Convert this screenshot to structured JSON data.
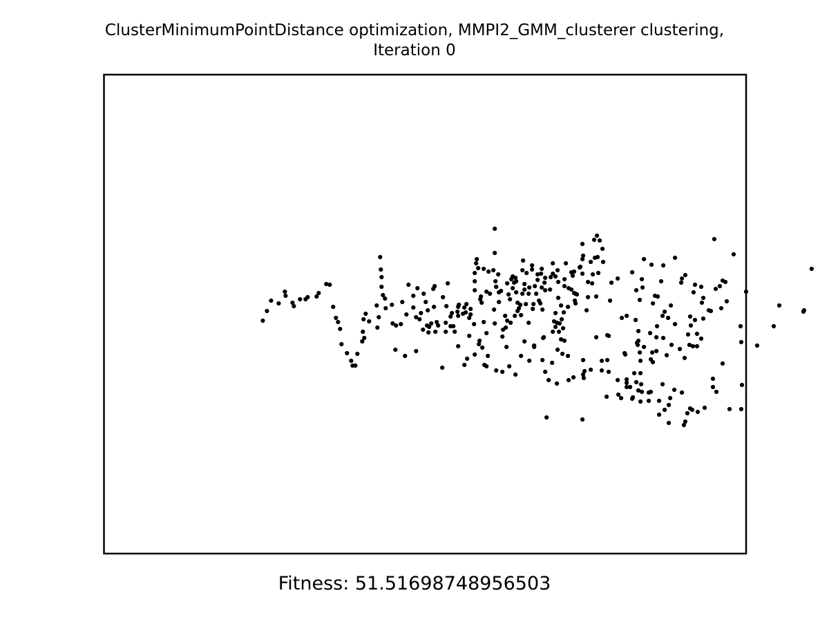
{
  "chart_data": {
    "type": "scatter",
    "title_lines": [
      "ClusterMinimumPointDistance optimization, MMPI2_GMM_clusterer clustering,",
      "Iteration 0"
    ],
    "axes_visible": false,
    "xlim": [
      0,
      930
    ],
    "ylim": [
      0,
      693
    ],
    "marker_color": "#000000",
    "points": [
      [
        226,
        351
      ],
      [
        252,
        336
      ],
      [
        251,
        310
      ],
      [
        272,
        302
      ],
      [
        265,
        322
      ],
      [
        253,
        306
      ],
      [
        287,
        336
      ],
      [
        288,
        333
      ],
      [
        303,
        378
      ],
      [
        310,
        361
      ],
      [
        311,
        287
      ],
      [
        305,
        339
      ],
      [
        305,
        347
      ],
      [
        311,
        299
      ],
      [
        296,
        337
      ],
      [
        299,
        332
      ],
      [
        313,
        273
      ],
      [
        314,
        267
      ],
      [
        320,
        321
      ],
      [
        324,
        281
      ],
      [
        340,
        258
      ],
      [
        340,
        223
      ],
      [
        331,
        285
      ],
      [
        318,
        385
      ],
      [
        338,
        283
      ],
      [
        340,
        360
      ],
      [
        346,
        315
      ],
      [
        342,
        307
      ],
      [
        341,
        299
      ],
      [
        351,
        379
      ],
      [
        316,
        280
      ],
      [
        324,
        358
      ],
      [
        345,
        289
      ],
      [
        328,
        374
      ],
      [
        363,
        359
      ],
      [
        360,
        318
      ],
      [
        370,
        294
      ],
      [
        368,
        301
      ],
      [
        381,
        269
      ],
      [
        386,
        287
      ],
      [
        375,
        338
      ],
      [
        383,
        311
      ],
      [
        383,
        303
      ],
      [
        395,
        339
      ],
      [
        409,
        340
      ],
      [
        412,
        301
      ],
      [
        394,
        276
      ],
      [
        413,
        294
      ],
      [
        407,
        288
      ],
      [
        420,
        311
      ],
      [
        431,
        283
      ],
      [
        428,
        292
      ],
      [
        426,
        357
      ],
      [
        424,
        372
      ],
      [
        432,
        300
      ],
      [
        441,
        306
      ],
      [
        428,
        345
      ],
      [
        438,
        404
      ],
      [
        453,
        291
      ],
      [
        464,
        278
      ],
      [
        463,
        279
      ],
      [
        475,
        300
      ],
      [
        479,
        271
      ],
      [
        496,
        252
      ],
      [
        484,
        239
      ],
      [
        488,
        233
      ],
      [
        492,
        240
      ],
      [
        485,
        265
      ],
      [
        489,
        264
      ],
      [
        482,
        289
      ],
      [
        481,
        302
      ],
      [
        468,
        262
      ],
      [
        467,
        245
      ],
      [
        467,
        288
      ],
      [
        457,
        331
      ],
      [
        457,
        317
      ],
      [
        456,
        327
      ],
      [
        455,
        316
      ],
      [
        451,
        311
      ],
      [
        446,
        336
      ],
      [
        440,
        344
      ],
      [
        437,
        354
      ],
      [
        434,
        360
      ],
      [
        433,
        372
      ],
      [
        436,
        383
      ],
      [
        431,
        398
      ],
      [
        436,
        334
      ],
      [
        413,
        312
      ],
      [
        408,
        308
      ],
      [
        404,
        327
      ],
      [
        406,
        331
      ],
      [
        408,
        281
      ],
      [
        402,
        297
      ],
      [
        400,
        317
      ],
      [
        398,
        306
      ],
      [
        402,
        289
      ],
      [
        394,
        282
      ],
      [
        390,
        308
      ],
      [
        389,
        359
      ],
      [
        397,
        392
      ],
      [
        396,
        332
      ],
      [
        380,
        283
      ],
      [
        380,
        317
      ],
      [
        377,
        333
      ],
      [
        373,
        342
      ],
      [
        371,
        315
      ],
      [
        371,
        299
      ],
      [
        366,
        309
      ],
      [
        369,
        349
      ],
      [
        373,
        330
      ],
      [
        356,
        366
      ],
      [
        355,
        349
      ],
      [
        358,
        356
      ],
      [
        362,
        325
      ],
      [
        366,
        292
      ],
      [
        349,
        313
      ],
      [
        346,
        329
      ],
      [
        342,
        307
      ],
      [
        339,
        340
      ],
      [
        333,
        317
      ],
      [
        328,
        314
      ],
      [
        319,
        325
      ],
      [
        311,
        312
      ],
      [
        303,
        352
      ],
      [
        298,
        344
      ],
      [
        294,
        346
      ],
      [
        288,
        333
      ],
      [
        286,
        343
      ],
      [
        280,
        364
      ],
      [
        270,
        335
      ],
      [
        276,
        350
      ],
      [
        269,
        372
      ],
      [
        254,
        372
      ],
      [
        242,
        363
      ],
      [
        243,
        341
      ],
      [
        233,
        345
      ],
      [
        240,
        329
      ],
      [
        237,
        317
      ],
      [
        228,
        309
      ],
      [
        215,
        304
      ],
      [
        206,
        329
      ],
      [
        191,
        333
      ],
      [
        181,
        324
      ],
      [
        196,
        398
      ],
      [
        210,
        407
      ],
      [
        226,
        400
      ],
      [
        287,
        349
      ],
      [
        264,
        424
      ],
      [
        278,
        345
      ],
      [
        245,
        365
      ],
      [
        258,
        363
      ],
      [
        321,
        330
      ],
      [
        352,
        369
      ],
      [
        357,
        394
      ],
      [
        364,
        296
      ],
      [
        358,
        302
      ],
      [
        378,
        348
      ],
      [
        385,
        332
      ],
      [
        389,
        317
      ],
      [
        397,
        394
      ],
      [
        410,
        381
      ],
      [
        424,
        273
      ],
      [
        421,
        293
      ],
      [
        424,
        288
      ],
      [
        432,
        323
      ],
      [
        443,
        273
      ],
      [
        441,
        296
      ],
      [
        447,
        309
      ],
      [
        451,
        286
      ],
      [
        455,
        285
      ],
      [
        459,
        318
      ],
      [
        467,
        267
      ],
      [
        473,
        341
      ],
      [
        475,
        322
      ],
      [
        487,
        321
      ],
      [
        490,
        287
      ],
      [
        497,
        271
      ],
      [
        505,
        378
      ],
      [
        507,
        327
      ],
      [
        509,
        301
      ],
      [
        518,
        295
      ],
      [
        524,
        352
      ],
      [
        546,
        388
      ],
      [
        539,
        286
      ],
      [
        545,
        312
      ],
      [
        547,
        391
      ],
      [
        550,
        326
      ],
      [
        553,
        296
      ],
      [
        554,
        308
      ],
      [
        556,
        267
      ],
      [
        567,
        275
      ],
      [
        568,
        402
      ],
      [
        569,
        331
      ],
      [
        572,
        320
      ],
      [
        581,
        299
      ],
      [
        584,
        276
      ],
      [
        586,
        343
      ],
      [
        595,
        334
      ],
      [
        601,
        265
      ],
      [
        611,
        295
      ],
      [
        610,
        301
      ],
      [
        616,
        290
      ],
      [
        624,
        363
      ],
      [
        627,
        393
      ],
      [
        622,
        391
      ],
      [
        628,
        315
      ],
      [
        630,
        304
      ],
      [
        633,
        375
      ],
      [
        642,
        323
      ],
      [
        640,
        330
      ],
      [
        650,
        341
      ],
      [
        653,
        342
      ],
      [
        660,
        310
      ],
      [
        666,
        306
      ],
      [
        670,
        298
      ],
      [
        668,
        338
      ],
      [
        674,
        300
      ],
      [
        676,
        328
      ],
      [
        686,
        260
      ],
      [
        697,
        387
      ],
      [
        704,
        314
      ],
      [
        720,
        392
      ],
      [
        787,
        343
      ],
      [
        788,
        341
      ],
      [
        799,
        281
      ],
      [
        658,
        238
      ],
      [
        630,
        355
      ],
      [
        591,
        352
      ],
      [
        566,
        412
      ],
      [
        569,
        416
      ],
      [
        576,
        321
      ],
      [
        601,
        361
      ],
      [
        574,
        400
      ],
      [
        592,
        478
      ],
      [
        578,
        472
      ],
      [
        563,
        460
      ],
      [
        551,
        432
      ],
      [
        539,
        469
      ],
      [
        523,
        468
      ],
      [
        519,
        463
      ],
      [
        502,
        466
      ],
      [
        495,
        414
      ],
      [
        518,
        442
      ],
      [
        531,
        441
      ],
      [
        545,
        445
      ],
      [
        548,
        457
      ],
      [
        552,
        448
      ],
      [
        540,
        467
      ],
      [
        531,
        452
      ],
      [
        563,
        472
      ],
      [
        566,
        459
      ],
      [
        578,
        492
      ],
      [
        592,
        504
      ],
      [
        614,
        507
      ],
      [
        619,
        490
      ],
      [
        616,
        502
      ],
      [
        594,
        468
      ],
      [
        600,
        456
      ],
      [
        611,
        460
      ],
      [
        634,
        488
      ],
      [
        623,
        483
      ],
      [
        626,
        485
      ],
      [
        644,
        482
      ],
      [
        586,
        485
      ],
      [
        620,
        376
      ],
      [
        639,
        382
      ],
      [
        698,
        449
      ],
      [
        697,
        484
      ],
      [
        696,
        364
      ],
      [
        744,
        364
      ],
      [
        752,
        334
      ],
      [
        656,
        452
      ],
      [
        656,
        440
      ],
      [
        661,
        459
      ],
      [
        670,
        418
      ],
      [
        680,
        484
      ],
      [
        633,
        393
      ],
      [
        623,
        350
      ],
      [
        642,
        353
      ],
      [
        639,
        307
      ],
      [
        583,
        448
      ],
      [
        583,
        349
      ],
      [
        556,
        394
      ],
      [
        584,
        381
      ],
      [
        574,
        380
      ],
      [
        589,
        406
      ],
      [
        596,
        391
      ],
      [
        608,
        397
      ],
      [
        615,
        410
      ],
      [
        544,
        355
      ],
      [
        531,
        349
      ],
      [
        529,
        405
      ],
      [
        536,
        452
      ],
      [
        548,
        457
      ],
      [
        553,
        459
      ],
      [
        565,
        374
      ],
      [
        575,
        364
      ],
      [
        548,
        385
      ],
      [
        550,
        402
      ],
      [
        548,
        371
      ],
      [
        551,
        414
      ],
      [
        542,
        432
      ],
      [
        551,
        473
      ],
      [
        531,
        446
      ],
      [
        528,
        403
      ],
      [
        503,
        377
      ],
      [
        487,
        380
      ],
      [
        468,
        413
      ],
      [
        468,
        434
      ],
      [
        479,
        427
      ],
      [
        503,
        413
      ],
      [
        505,
        430
      ],
      [
        495,
        428
      ],
      [
        469,
        439
      ],
      [
        454,
        438
      ],
      [
        415,
        496
      ],
      [
        409,
        413
      ],
      [
        418,
        442
      ],
      [
        423,
        417
      ],
      [
        447,
        442
      ],
      [
        467,
        499
      ],
      [
        470,
        429
      ],
      [
        446,
        407
      ],
      [
        428,
        365
      ],
      [
        441,
        385
      ],
      [
        439,
        367
      ],
      [
        430,
        359
      ],
      [
        413,
        430
      ],
      [
        411,
        380
      ],
      [
        430,
        447
      ],
      [
        378,
        407
      ],
      [
        390,
        414
      ],
      [
        383,
        386
      ],
      [
        370,
        434
      ],
      [
        361,
        422
      ],
      [
        351,
        430
      ],
      [
        342,
        428
      ],
      [
        328,
        422
      ],
      [
        325,
        420
      ],
      [
        330,
        407
      ],
      [
        322,
        395
      ],
      [
        317,
        390
      ],
      [
        311,
        405
      ],
      [
        300,
        411
      ],
      [
        296,
        420
      ],
      [
        287,
        393
      ],
      [
        282,
        372
      ],
      [
        276,
        364
      ],
      [
        269,
        359
      ],
      [
        256,
        358
      ],
      [
        248,
        360
      ],
      [
        244,
        373
      ],
      [
        236,
        369
      ],
      [
        231,
        354
      ],
      [
        222,
        320
      ],
      [
        222,
        337
      ],
      [
        212,
        347
      ],
      [
        204,
        361
      ],
      [
        197,
        363
      ],
      [
        192,
        360
      ],
      [
        182,
        338
      ],
      [
        178,
        319
      ],
      [
        176,
        293
      ],
      [
        174,
        264
      ],
      [
        175,
        282
      ],
      [
        176,
        307
      ],
      [
        172,
        351
      ],
      [
        170,
        366
      ],
      [
        169,
        334
      ],
      [
        158,
        357
      ],
      [
        153,
        346
      ],
      [
        150,
        354
      ],
      [
        149,
        372
      ],
      [
        151,
        381
      ],
      [
        148,
        386
      ],
      [
        141,
        404
      ],
      [
        138,
        421
      ],
      [
        134,
        421
      ],
      [
        132,
        414
      ],
      [
        126,
        403
      ],
      [
        118,
        390
      ],
      [
        116,
        368
      ],
      [
        113,
        358
      ],
      [
        110,
        352
      ],
      [
        106,
        336
      ],
      [
        101,
        304
      ],
      [
        96,
        303
      ],
      [
        85,
        316
      ],
      [
        82,
        321
      ],
      [
        69,
        322
      ],
      [
        66,
        325
      ],
      [
        58,
        325
      ],
      [
        49,
        335
      ],
      [
        47,
        330
      ],
      [
        37,
        320
      ],
      [
        36,
        314
      ],
      [
        27,
        331
      ],
      [
        16,
        327
      ],
      [
        10,
        342
      ],
      [
        4,
        356
      ]
    ],
    "fitness_label": "Fitness: 51.51698748956503"
  }
}
